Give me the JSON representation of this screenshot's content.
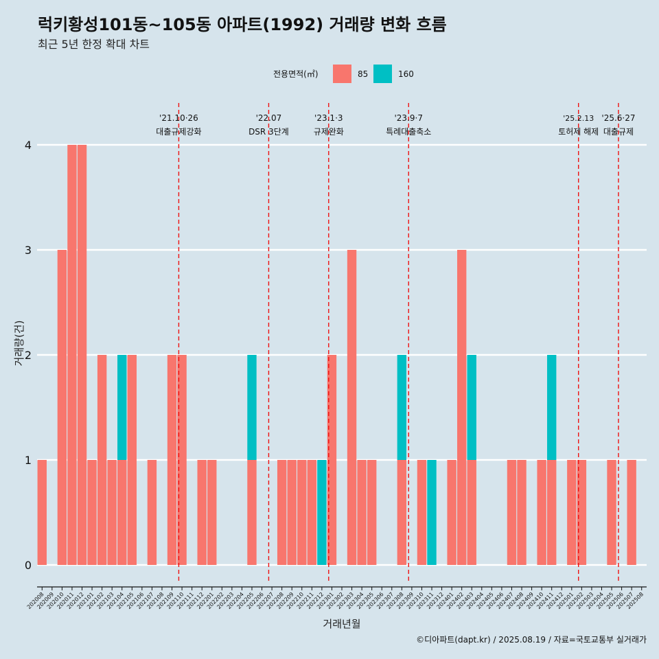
{
  "chart_data": {
    "type": "bar",
    "title": "럭키황성101동~105동 아파트(1992) 거래량 변화 흐름",
    "subtitle": "최근 5년 한정 확대 차트",
    "xlabel": "거래년월",
    "ylabel": "거래량(건)",
    "ylim": [
      0,
      4
    ],
    "yticks": [
      0,
      1,
      2,
      3,
      4
    ],
    "grid": "horizontal",
    "legend": {
      "title": "전용면적(㎡)",
      "placement": "top",
      "entries": [
        "85",
        "160"
      ]
    },
    "series_colors": {
      "85": "#f8766d",
      "160": "#00bfc4"
    },
    "categories": [
      "202008",
      "202009",
      "202010",
      "202011",
      "202012",
      "202101",
      "202102",
      "202103",
      "202104",
      "202105",
      "202106",
      "202107",
      "202108",
      "202109",
      "202110",
      "202111",
      "202112",
      "202201",
      "202202",
      "202203",
      "202204",
      "202205",
      "202206",
      "202207",
      "202208",
      "202209",
      "202210",
      "202211",
      "202212",
      "202301",
      "202302",
      "202303",
      "202304",
      "202305",
      "202306",
      "202307",
      "202308",
      "202309",
      "202310",
      "202311",
      "202312",
      "202401",
      "202402",
      "202403",
      "202404",
      "202405",
      "202406",
      "202407",
      "202408",
      "202409",
      "202410",
      "202411",
      "202412",
      "202501",
      "202502",
      "202503",
      "202504",
      "202505",
      "202506",
      "202507",
      "202508"
    ],
    "series": [
      {
        "name": "85",
        "values": [
          1,
          0,
          3,
          4,
          4,
          1,
          2,
          1,
          1,
          2,
          0,
          1,
          0,
          2,
          2,
          0,
          1,
          1,
          0,
          0,
          0,
          1,
          0,
          0,
          1,
          1,
          1,
          1,
          0,
          2,
          0,
          3,
          1,
          1,
          0,
          0,
          1,
          0,
          1,
          0,
          0,
          1,
          3,
          1,
          0,
          0,
          0,
          1,
          1,
          0,
          1,
          1,
          0,
          1,
          1,
          0,
          0,
          1,
          0,
          1,
          0
        ]
      },
      {
        "name": "160",
        "values": [
          0,
          0,
          0,
          0,
          0,
          0,
          0,
          0,
          1,
          0,
          0,
          0,
          0,
          0,
          0,
          0,
          0,
          0,
          0,
          0,
          0,
          1,
          0,
          0,
          0,
          0,
          0,
          0,
          1,
          0,
          0,
          0,
          0,
          0,
          0,
          0,
          1,
          0,
          0,
          1,
          0,
          0,
          0,
          1,
          0,
          0,
          0,
          0,
          0,
          0,
          0,
          1,
          0,
          0,
          0,
          0,
          0,
          0,
          0,
          0,
          0
        ]
      }
    ],
    "annotations": [
      {
        "category": "202110",
        "date": "'21.10·26",
        "label": "대출규제강화"
      },
      {
        "category": "202207",
        "date": "'22.07",
        "label": "DSR 3단계"
      },
      {
        "category": "202301",
        "date": "'23.1·3",
        "label": "규제완화"
      },
      {
        "category": "202309",
        "date": "'23.9·7",
        "label": "특례대출축소"
      },
      {
        "category": "202502",
        "date": "'25.2.13",
        "label": "토허제 해제"
      },
      {
        "category": "202506",
        "date": "'25.6·27",
        "label": "대출규제"
      }
    ],
    "caption": "©디아파트(dapt.kr) / 2025.08.19 / 자료=국토교통부 실거래가"
  }
}
